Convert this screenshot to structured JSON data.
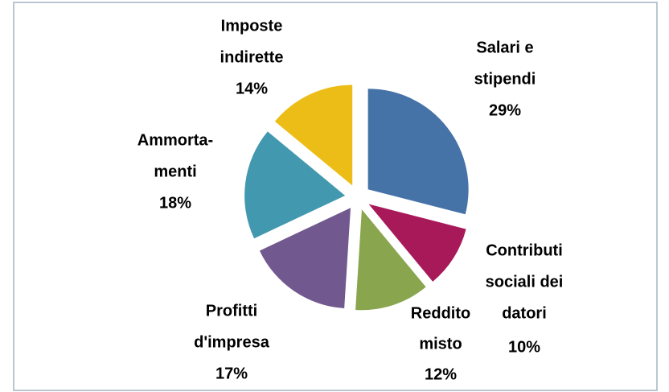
{
  "chart_data": {
    "type": "pie",
    "categories": [
      [
        "Salari e",
        "stipendi"
      ],
      [
        "Contributi",
        "sociali dei",
        "datori"
      ],
      [
        "Reddito",
        "misto"
      ],
      [
        "Profitti",
        "d'impresa"
      ],
      [
        "Ammorta-",
        "menti"
      ],
      [
        "Imposte",
        "indirette"
      ]
    ],
    "values": [
      29,
      10,
      12,
      17,
      18,
      14
    ],
    "value_labels": [
      "29%",
      "10%",
      "12%",
      "17%",
      "18%",
      "14%"
    ],
    "colors": [
      "#4572a7",
      "#a8195a",
      "#89a54e",
      "#71588f",
      "#4198af",
      "#ebbd16"
    ]
  }
}
